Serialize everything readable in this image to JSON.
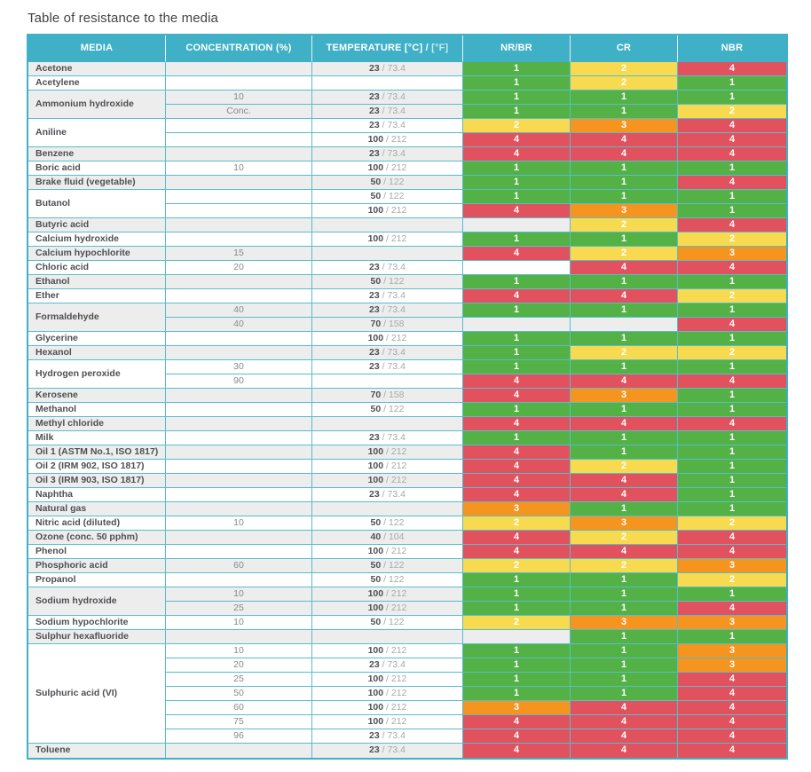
{
  "page": {
    "title": "Table of resistance to the media"
  },
  "table": {
    "header": {
      "media": "MEDIA",
      "concentration": "CONCENTRATION (%)",
      "temperature_main": "TEMPERATURE [°C] / ",
      "temperature_light": "[°F]",
      "nr_br": "NR/BR",
      "cr": "CR",
      "nbr": "NBR"
    },
    "rating_columns": [
      "NR/BR",
      "CR",
      "NBR"
    ],
    "rating_colors": {
      "1": "#53b146",
      "2": "#f8da50",
      "3": "#f5941f",
      "4": "#e2525e"
    },
    "style_colors": {
      "header_teal": "#3fb0c5",
      "border_teal": "#56becd",
      "stripe_gray": "#ededed"
    },
    "temp_separator": " / ",
    "groups": [
      {
        "media": "Acetone",
        "rows": [
          {
            "conc": "",
            "temp_c": "23",
            "temp_f": "73.4",
            "ratings": [
              "1",
              "2",
              "4"
            ]
          }
        ]
      },
      {
        "media": "Acetylene",
        "rows": [
          {
            "conc": "",
            "temp_c": "",
            "temp_f": "",
            "ratings": [
              "1",
              "2",
              "1"
            ]
          }
        ]
      },
      {
        "media": "Ammonium hydroxide",
        "rows": [
          {
            "conc": "10",
            "temp_c": "23",
            "temp_f": "73.4",
            "ratings": [
              "1",
              "1",
              "1"
            ]
          },
          {
            "conc": "Conc.",
            "temp_c": "23",
            "temp_f": "73.4",
            "ratings": [
              "1",
              "1",
              "2"
            ]
          }
        ]
      },
      {
        "media": "Aniline",
        "rows": [
          {
            "conc": "",
            "temp_c": "23",
            "temp_f": "73.4",
            "ratings": [
              "2",
              "3",
              "4"
            ]
          },
          {
            "conc": "",
            "temp_c": "100",
            "temp_f": "212",
            "ratings": [
              "4",
              "4",
              "4"
            ]
          }
        ]
      },
      {
        "media": "Benzene",
        "rows": [
          {
            "conc": "",
            "temp_c": "23",
            "temp_f": "73.4",
            "ratings": [
              "4",
              "4",
              "4"
            ]
          }
        ]
      },
      {
        "media": "Boric acid",
        "rows": [
          {
            "conc": "10",
            "temp_c": "100",
            "temp_f": "212",
            "ratings": [
              "1",
              "1",
              "1"
            ]
          }
        ]
      },
      {
        "media": "Brake fluid (vegetable)",
        "rows": [
          {
            "conc": "",
            "temp_c": "50",
            "temp_f": "122",
            "ratings": [
              "1",
              "1",
              "4"
            ]
          }
        ]
      },
      {
        "media": "Butanol",
        "rows": [
          {
            "conc": "",
            "temp_c": "50",
            "temp_f": "122",
            "ratings": [
              "1",
              "1",
              "1"
            ]
          },
          {
            "conc": "",
            "temp_c": "100",
            "temp_f": "212",
            "ratings": [
              "4",
              "3",
              "1"
            ]
          }
        ]
      },
      {
        "media": "Butyric acid",
        "rows": [
          {
            "conc": "",
            "temp_c": "",
            "temp_f": "",
            "ratings": [
              null,
              "2",
              "4"
            ]
          }
        ]
      },
      {
        "media": "Calcium hydroxide",
        "rows": [
          {
            "conc": "",
            "temp_c": "100",
            "temp_f": "212",
            "ratings": [
              "1",
              "1",
              "2"
            ]
          }
        ]
      },
      {
        "media": "Calcium hypochlorite",
        "rows": [
          {
            "conc": "15",
            "temp_c": "",
            "temp_f": "",
            "ratings": [
              "4",
              "2",
              "3"
            ]
          }
        ]
      },
      {
        "media": "Chloric acid",
        "rows": [
          {
            "conc": "20",
            "temp_c": "23",
            "temp_f": "73.4",
            "ratings": [
              null,
              "4",
              "4"
            ]
          }
        ]
      },
      {
        "media": "Ethanol",
        "rows": [
          {
            "conc": "",
            "temp_c": "50",
            "temp_f": "122",
            "ratings": [
              "1",
              "1",
              "1"
            ]
          }
        ]
      },
      {
        "media": "Ether",
        "rows": [
          {
            "conc": "",
            "temp_c": "23",
            "temp_f": "73.4",
            "ratings": [
              "4",
              "4",
              "2"
            ]
          }
        ]
      },
      {
        "media": "Formaldehyde",
        "rows": [
          {
            "conc": "40",
            "temp_c": "23",
            "temp_f": "73.4",
            "ratings": [
              "1",
              "1",
              "1"
            ]
          },
          {
            "conc": "40",
            "temp_c": "70",
            "temp_f": "158",
            "ratings": [
              null,
              null,
              "4"
            ]
          }
        ]
      },
      {
        "media": "Glycerine",
        "rows": [
          {
            "conc": "",
            "temp_c": "100",
            "temp_f": "212",
            "ratings": [
              "1",
              "1",
              "1"
            ]
          }
        ]
      },
      {
        "media": "Hexanol",
        "rows": [
          {
            "conc": "",
            "temp_c": "23",
            "temp_f": "73.4",
            "ratings": [
              "1",
              "2",
              "2"
            ]
          }
        ]
      },
      {
        "media": "Hydrogen peroxide",
        "rows": [
          {
            "conc": "30",
            "temp_c": "23",
            "temp_f": "73.4",
            "ratings": [
              "1",
              "1",
              "1"
            ]
          },
          {
            "conc": "90",
            "temp_c": "",
            "temp_f": "",
            "ratings": [
              "4",
              "4",
              "4"
            ]
          }
        ]
      },
      {
        "media": "Kerosene",
        "rows": [
          {
            "conc": "",
            "temp_c": "70",
            "temp_f": "158",
            "ratings": [
              "4",
              "3",
              "1"
            ]
          }
        ]
      },
      {
        "media": "Methanol",
        "rows": [
          {
            "conc": "",
            "temp_c": "50",
            "temp_f": "122",
            "ratings": [
              "1",
              "1",
              "1"
            ]
          }
        ]
      },
      {
        "media": "Methyl chloride",
        "rows": [
          {
            "conc": "",
            "temp_c": "",
            "temp_f": "",
            "ratings": [
              "4",
              "4",
              "4"
            ]
          }
        ]
      },
      {
        "media": "Milk",
        "rows": [
          {
            "conc": "",
            "temp_c": "23",
            "temp_f": "73.4",
            "ratings": [
              "1",
              "1",
              "1"
            ]
          }
        ]
      },
      {
        "media": "Oil 1 (ASTM No.1, ISO 1817)",
        "rows": [
          {
            "conc": "",
            "temp_c": "100",
            "temp_f": "212",
            "ratings": [
              "4",
              "1",
              "1"
            ]
          }
        ]
      },
      {
        "media": "Oil 2 (IRM 902, ISO 1817)",
        "rows": [
          {
            "conc": "",
            "temp_c": "100",
            "temp_f": "212",
            "ratings": [
              "4",
              "2",
              "1"
            ]
          }
        ]
      },
      {
        "media": "Oil 3 (IRM 903, ISO 1817)",
        "rows": [
          {
            "conc": "",
            "temp_c": "100",
            "temp_f": "212",
            "ratings": [
              "4",
              "4",
              "1"
            ]
          }
        ]
      },
      {
        "media": "Naphtha",
        "rows": [
          {
            "conc": "",
            "temp_c": "23",
            "temp_f": "73.4",
            "ratings": [
              "4",
              "4",
              "1"
            ]
          }
        ]
      },
      {
        "media": "Natural gas",
        "rows": [
          {
            "conc": "",
            "temp_c": "",
            "temp_f": "",
            "ratings": [
              "3",
              "1",
              "1"
            ]
          }
        ]
      },
      {
        "media": "Nitric acid (diluted)",
        "rows": [
          {
            "conc": "10",
            "temp_c": "50",
            "temp_f": "122",
            "ratings": [
              "2",
              "3",
              "2"
            ]
          }
        ]
      },
      {
        "media": "Ozone (conc. 50 pphm)",
        "rows": [
          {
            "conc": "",
            "temp_c": "40",
            "temp_f": "104",
            "ratings": [
              "4",
              "2",
              "4"
            ]
          }
        ]
      },
      {
        "media": "Phenol",
        "rows": [
          {
            "conc": "",
            "temp_c": "100",
            "temp_f": "212",
            "ratings": [
              "4",
              "4",
              "4"
            ]
          }
        ]
      },
      {
        "media": "Phosphoric acid",
        "rows": [
          {
            "conc": "60",
            "temp_c": "50",
            "temp_f": "122",
            "ratings": [
              "2",
              "2",
              "3"
            ]
          }
        ]
      },
      {
        "media": "Propanol",
        "rows": [
          {
            "conc": "",
            "temp_c": "50",
            "temp_f": "122",
            "ratings": [
              "1",
              "1",
              "2"
            ]
          }
        ]
      },
      {
        "media": "Sodium hydroxide",
        "rows": [
          {
            "conc": "10",
            "temp_c": "100",
            "temp_f": "212",
            "ratings": [
              "1",
              "1",
              "1"
            ]
          },
          {
            "conc": "25",
            "temp_c": "100",
            "temp_f": "212",
            "ratings": [
              "1",
              "1",
              "4"
            ]
          }
        ]
      },
      {
        "media": "Sodium hypochlorite",
        "rows": [
          {
            "conc": "10",
            "temp_c": "50",
            "temp_f": "122",
            "ratings": [
              "2",
              "3",
              "3"
            ]
          }
        ]
      },
      {
        "media": "Sulphur hexafluoride",
        "rows": [
          {
            "conc": "",
            "temp_c": "",
            "temp_f": "",
            "ratings": [
              null,
              "1",
              "1"
            ]
          }
        ]
      },
      {
        "media": "Sulphuric acid (VI)",
        "rows": [
          {
            "conc": "10",
            "temp_c": "100",
            "temp_f": "212",
            "ratings": [
              "1",
              "1",
              "3"
            ]
          },
          {
            "conc": "20",
            "temp_c": "23",
            "temp_f": "73.4",
            "ratings": [
              "1",
              "1",
              "3"
            ]
          },
          {
            "conc": "25",
            "temp_c": "100",
            "temp_f": "212",
            "ratings": [
              "1",
              "1",
              "4"
            ]
          },
          {
            "conc": "50",
            "temp_c": "100",
            "temp_f": "212",
            "ratings": [
              "1",
              "1",
              "4"
            ]
          },
          {
            "conc": "60",
            "temp_c": "100",
            "temp_f": "212",
            "ratings": [
              "3",
              "4",
              "4"
            ]
          },
          {
            "conc": "75",
            "temp_c": "100",
            "temp_f": "212",
            "ratings": [
              "4",
              "4",
              "4"
            ]
          },
          {
            "conc": "96",
            "temp_c": "23",
            "temp_f": "73.4",
            "ratings": [
              "4",
              "4",
              "4"
            ]
          }
        ]
      },
      {
        "media": "Toluene",
        "rows": [
          {
            "conc": "",
            "temp_c": "23",
            "temp_f": "73.4",
            "ratings": [
              "4",
              "4",
              "4"
            ]
          }
        ]
      }
    ]
  }
}
